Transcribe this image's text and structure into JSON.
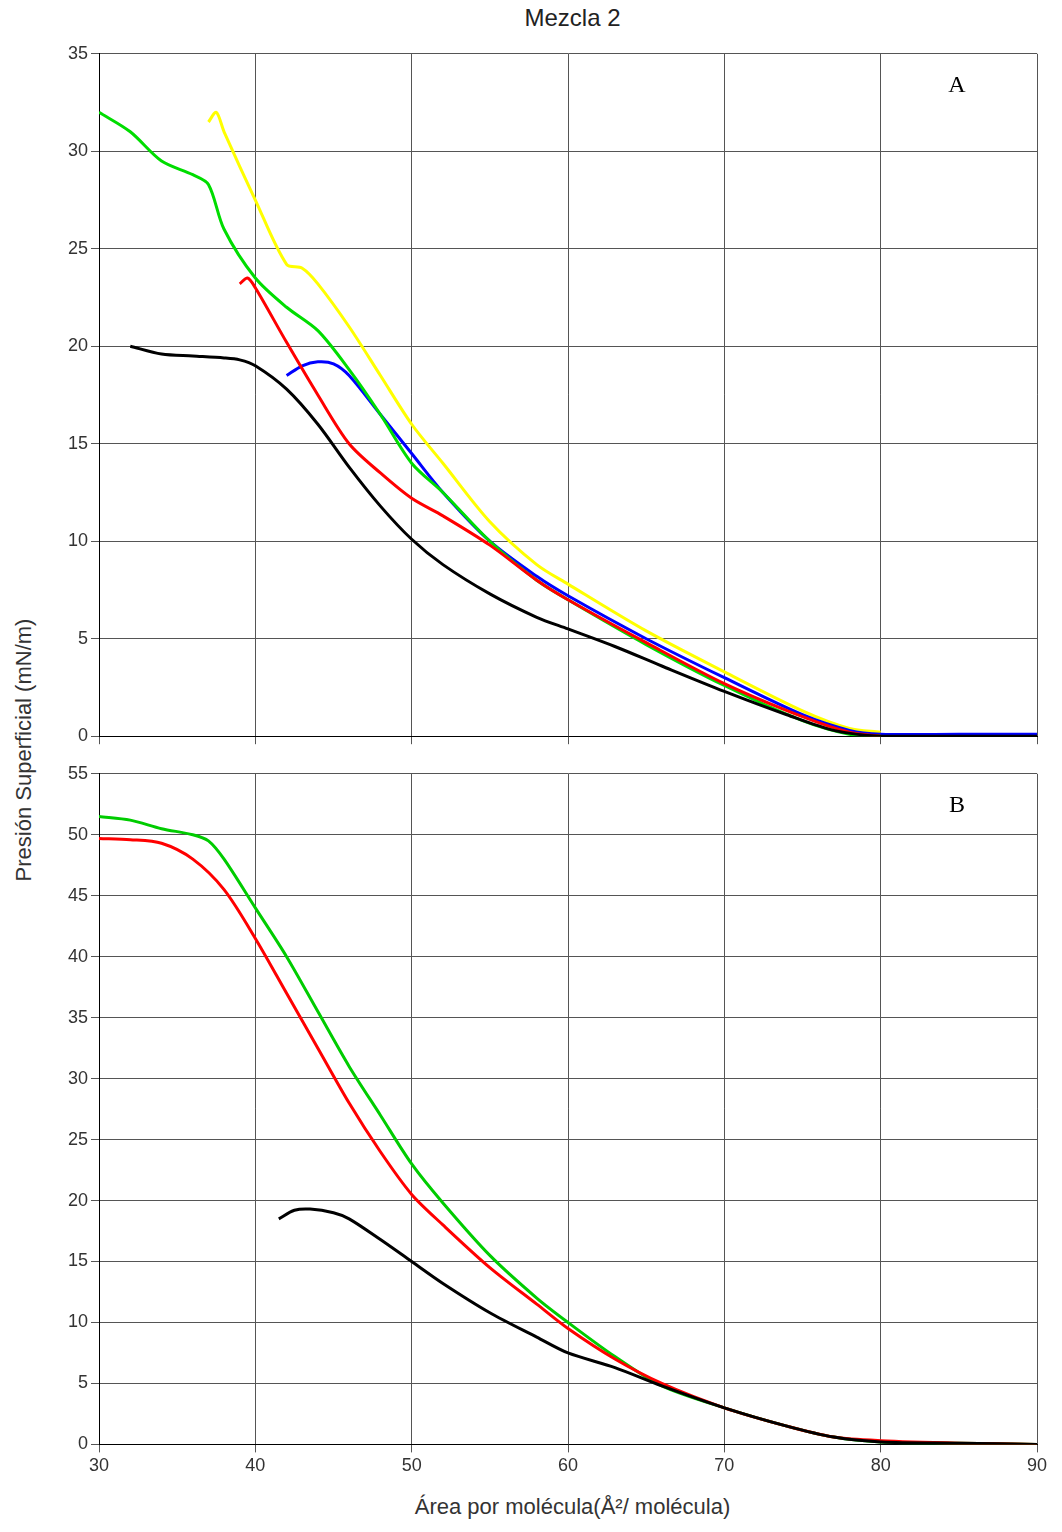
{
  "chart_data": [
    {
      "panel": "A",
      "type": "line",
      "title": "Mezcla 2",
      "y_label": "Presión Superficial (mN/m)",
      "xlim": [
        30,
        90
      ],
      "xticks": [
        30,
        40,
        50,
        60,
        70,
        80,
        90
      ],
      "ylim": [
        0,
        35
      ],
      "yticks": [
        0,
        5,
        10,
        15,
        20,
        25,
        30,
        35
      ],
      "grid": true,
      "tick_labels": "y",
      "series": [
        {
          "color": "#000000",
          "marker": "none",
          "line_style": "solid",
          "x": [
            32,
            34,
            36,
            38,
            39,
            40,
            42,
            44,
            46,
            48,
            50,
            52,
            55,
            58,
            60,
            63,
            66,
            70,
            74,
            77,
            80,
            85,
            90
          ],
          "values": [
            20,
            19.6,
            19.5,
            19.4,
            19.3,
            19,
            17.8,
            16,
            13.8,
            11.8,
            10.1,
            8.8,
            7.3,
            6.1,
            5.5,
            4.6,
            3.6,
            2.3,
            1.1,
            0.3,
            0,
            0,
            0
          ]
        },
        {
          "color": "#ff0000",
          "marker": "none",
          "line_style": "solid",
          "x": [
            39,
            39.5,
            40,
            42,
            44,
            46,
            48,
            50,
            52,
            55,
            58,
            60,
            65,
            70,
            75,
            78,
            80
          ],
          "values": [
            23.2,
            23.5,
            23,
            20.2,
            17.5,
            15,
            13.5,
            12.2,
            11.3,
            9.8,
            8,
            7,
            4.8,
            2.7,
            1,
            0.2,
            0
          ]
        },
        {
          "color": "#00dd00",
          "marker": "none",
          "line_style": "solid",
          "x": [
            30,
            32,
            34,
            36,
            37,
            38,
            40,
            42,
            44,
            46,
            48,
            50,
            52,
            55,
            58,
            60,
            65,
            70,
            75,
            78,
            80
          ],
          "values": [
            32,
            31,
            29.5,
            28.8,
            28.3,
            26,
            23.5,
            22,
            20.8,
            18.8,
            16.5,
            14,
            12.5,
            10,
            8,
            7,
            4.7,
            2.6,
            0.8,
            0.1,
            0
          ]
        },
        {
          "color": "#0000ff",
          "marker": "none",
          "line_style": "solid",
          "x": [
            42,
            43,
            44,
            45,
            46,
            48,
            50,
            52,
            55,
            58,
            60,
            65,
            70,
            75,
            78,
            80,
            85,
            90
          ],
          "values": [
            18.5,
            19,
            19.2,
            19.1,
            18.5,
            16.5,
            14.5,
            12.5,
            10,
            8.2,
            7.2,
            5,
            3,
            1.1,
            0.3,
            0.1,
            0.1,
            0.1
          ]
        },
        {
          "color": "#ffff00",
          "marker": "none",
          "line_style": "solid",
          "x": [
            37,
            37.5,
            38,
            40,
            42,
            43,
            44,
            46,
            48,
            50,
            52,
            55,
            58,
            60,
            65,
            70,
            75,
            78,
            80
          ],
          "values": [
            31.5,
            32,
            31,
            27.5,
            24.2,
            24,
            23.2,
            21,
            18.5,
            16,
            14,
            11,
            8.8,
            7.8,
            5.4,
            3.3,
            1.3,
            0.4,
            0.2
          ]
        }
      ]
    },
    {
      "panel": "B",
      "type": "line",
      "x_label": "Área por molécula(Å²/ molécula)",
      "xlim": [
        30,
        90
      ],
      "xticks": [
        30,
        40,
        50,
        60,
        70,
        80,
        90
      ],
      "ylim": [
        0,
        55
      ],
      "yticks": [
        0,
        5,
        10,
        15,
        20,
        25,
        30,
        35,
        40,
        45,
        50,
        55
      ],
      "grid": true,
      "series": [
        {
          "color": "#000000",
          "marker": "none",
          "line_style": "solid",
          "x": [
            41.5,
            42.5,
            43.5,
            45,
            46,
            48,
            50,
            52,
            55,
            58,
            60,
            63,
            66,
            70,
            74,
            77,
            80,
            85,
            90
          ],
          "values": [
            18.5,
            19.2,
            19.3,
            19,
            18.5,
            16.8,
            15,
            13.2,
            10.8,
            8.8,
            7.5,
            6.3,
            4.8,
            3,
            1.5,
            0.6,
            0.2,
            0.1,
            0
          ]
        },
        {
          "color": "#ff0000",
          "marker": "none",
          "line_style": "solid",
          "x": [
            30,
            32,
            34,
            36,
            38,
            40,
            42,
            44,
            46,
            48,
            50,
            52,
            55,
            58,
            60,
            63,
            66,
            70,
            74,
            77,
            80,
            85,
            90
          ],
          "values": [
            49.7,
            49.6,
            49.3,
            48,
            45.5,
            41.5,
            37,
            32.5,
            28,
            24,
            20.5,
            18,
            14.5,
            11.5,
            9.5,
            7,
            5,
            3,
            1.5,
            0.6,
            0.3,
            0.1,
            0
          ]
        },
        {
          "color": "#00cc00",
          "marker": "none",
          "line_style": "solid",
          "x": [
            30,
            32,
            34,
            36,
            37,
            38,
            40,
            42,
            44,
            46,
            48,
            50,
            52,
            55,
            58,
            60,
            63,
            66,
            70,
            74,
            77,
            80,
            85,
            90
          ],
          "values": [
            51.5,
            51.2,
            50.5,
            50,
            49.5,
            48,
            44,
            40,
            35.5,
            31,
            27,
            23,
            19.8,
            15.5,
            12,
            10,
            7.2,
            4.8,
            3,
            1.5,
            0.6,
            0.2,
            0.1,
            0
          ]
        }
      ]
    }
  ]
}
